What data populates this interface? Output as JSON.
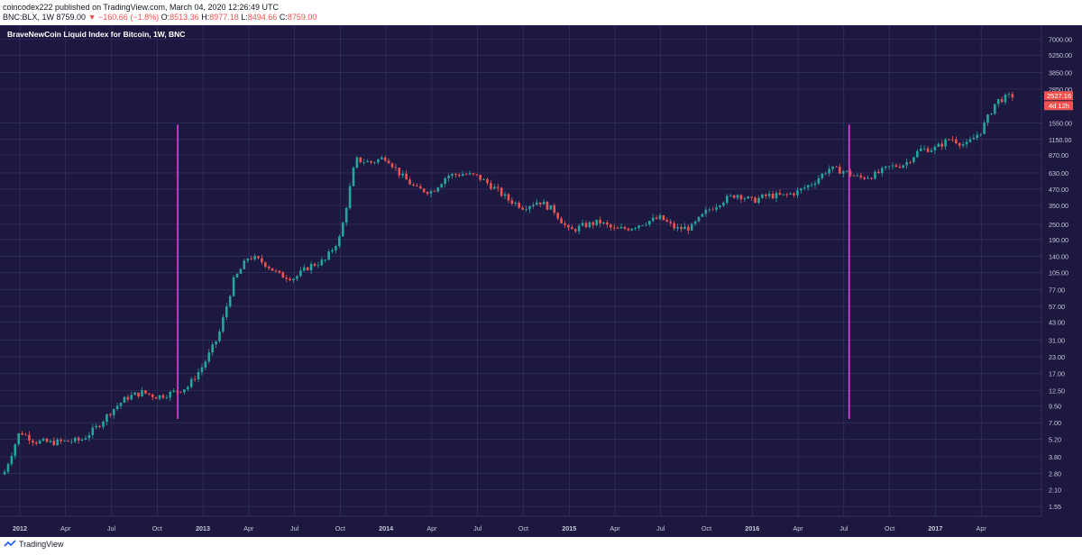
{
  "header": {
    "publisher_line": "coincodex222 published on TradingView.com, March 04, 2020 12:26:49 UTC",
    "symbol": "BNC:BLX, 1W",
    "last": "8759.00",
    "change": "−160.66 (−1.8%)",
    "open_label": "O:",
    "open": "8513.36",
    "high_label": "H:",
    "high": "8977.18",
    "low_label": "L:",
    "low": "8494.66",
    "close_label": "C:",
    "close": "8759.00"
  },
  "footer": {
    "brand": "TradingView"
  },
  "colors": {
    "background": "#1c1840",
    "grid": "#3a3564",
    "up": "#26a69a",
    "down": "#ef5350",
    "marker": "#d63ad6",
    "axis_text": "#c8c8d8"
  },
  "chart_data": {
    "type": "candlestick",
    "title": "BraveNewCoin Liquid Index for Bitcoin, 1W, BNC",
    "y_scale": "log",
    "y_ticks": [
      "7000.00",
      "5250.00",
      "3850.00",
      "2850.00",
      "1550.00",
      "1150.00",
      "870.00",
      "630.00",
      "470.00",
      "350.00",
      "250.00",
      "190.00",
      "140.00",
      "105.00",
      "77.00",
      "57.00",
      "43.00",
      "31.00",
      "23.00",
      "17.00",
      "12.50",
      "9.50",
      "7.00",
      "5.20",
      "3.80",
      "2.80",
      "2.10",
      "1.55"
    ],
    "x_ticks": [
      "2012",
      "Apr",
      "Jul",
      "Oct",
      "2013",
      "Apr",
      "Jul",
      "Oct",
      "2014",
      "Apr",
      "Jul",
      "Oct",
      "2015",
      "Apr",
      "Jul",
      "Oct",
      "2016",
      "Apr",
      "Jul",
      "Oct",
      "2017",
      "Apr"
    ],
    "x_range": [
      "2012-01",
      "2017-06"
    ],
    "y_range": [
      1.3,
      9000
    ],
    "price_label": {
      "value": "2527.16",
      "countdown": "4d 12h"
    },
    "vertical_markers": [
      {
        "date": "2012-11",
        "from": 7.5,
        "to": 1500
      },
      {
        "date": "2016-07",
        "from": 7.5,
        "to": 1500
      }
    ],
    "anchors": [
      [
        "2011-12",
        2.9
      ],
      [
        "2012-01",
        6.0
      ],
      [
        "2012-02",
        5.0
      ],
      [
        "2012-03",
        4.9
      ],
      [
        "2012-04",
        5.0
      ],
      [
        "2012-05",
        5.1
      ],
      [
        "2012-06",
        6.4
      ],
      [
        "2012-07",
        8.7
      ],
      [
        "2012-08",
        11.0
      ],
      [
        "2012-09",
        12.1
      ],
      [
        "2012-10",
        11.2
      ],
      [
        "2012-11",
        12.0
      ],
      [
        "2012-12",
        13.4
      ],
      [
        "2013-01",
        19.5
      ],
      [
        "2013-02",
        33.0
      ],
      [
        "2013-03",
        90.0
      ],
      [
        "2013-04",
        140.0
      ],
      [
        "2013-05",
        125.0
      ],
      [
        "2013-06",
        100.0
      ],
      [
        "2013-07",
        95.0
      ],
      [
        "2013-08",
        118.0
      ],
      [
        "2013-09",
        130.0
      ],
      [
        "2013-10",
        200.0
      ],
      [
        "2013-11",
        800.0
      ],
      [
        "2013-12",
        760.0
      ],
      [
        "2014-01",
        840.0
      ],
      [
        "2014-02",
        600.0
      ],
      [
        "2014-03",
        470.0
      ],
      [
        "2014-04",
        450.0
      ],
      [
        "2014-05",
        600.0
      ],
      [
        "2014-06",
        620.0
      ],
      [
        "2014-07",
        590.0
      ],
      [
        "2014-08",
        490.0
      ],
      [
        "2014-09",
        390.0
      ],
      [
        "2014-10",
        340.0
      ],
      [
        "2014-11",
        380.0
      ],
      [
        "2014-12",
        320.0
      ],
      [
        "2015-01",
        220.0
      ],
      [
        "2015-02",
        245.0
      ],
      [
        "2015-03",
        260.0
      ],
      [
        "2015-04",
        225.0
      ],
      [
        "2015-05",
        235.0
      ],
      [
        "2015-06",
        260.0
      ],
      [
        "2015-07",
        280.0
      ],
      [
        "2015-08",
        230.0
      ],
      [
        "2015-09",
        235.0
      ],
      [
        "2015-10",
        315.0
      ],
      [
        "2015-11",
        380.0
      ],
      [
        "2015-12",
        430.0
      ],
      [
        "2016-01",
        380.0
      ],
      [
        "2016-02",
        420.0
      ],
      [
        "2016-03",
        415.0
      ],
      [
        "2016-04",
        450.0
      ],
      [
        "2016-05",
        530.0
      ],
      [
        "2016-06",
        680.0
      ],
      [
        "2016-07",
        650.0
      ],
      [
        "2016-08",
        575.0
      ],
      [
        "2016-09",
        605.0
      ],
      [
        "2016-10",
        700.0
      ],
      [
        "2016-11",
        740.0
      ],
      [
        "2016-12",
        960.0
      ],
      [
        "2017-01",
        980.0
      ],
      [
        "2017-02",
        1180.0
      ],
      [
        "2017-03",
        1030.0
      ],
      [
        "2017-04",
        1350.0
      ],
      [
        "2017-05",
        2300.0
      ],
      [
        "2017-06",
        2527.16
      ]
    ]
  }
}
